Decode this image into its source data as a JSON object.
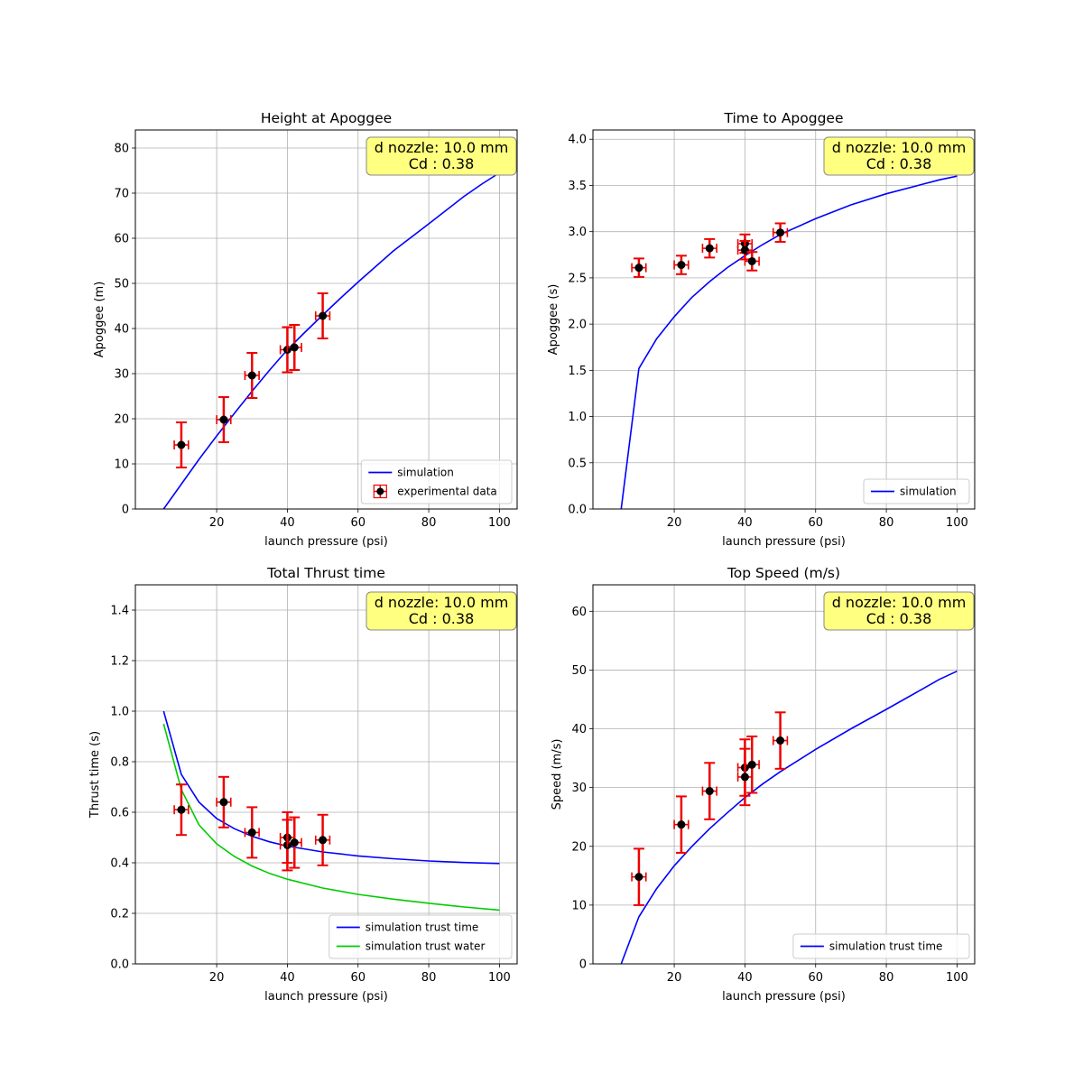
{
  "figure": {
    "annotation": {
      "line1": "d nozzle: 10.0 mm",
      "line2": "Cd :   0.38",
      "box_color": "#ffff80"
    },
    "colors": {
      "simulation": "#0000ff",
      "water": "#00cc00",
      "error_bar": "#ee0000",
      "marker": "#000000",
      "grid": "#b0b0b0"
    }
  },
  "chart_data": [
    {
      "type": "line",
      "title": "Height at Apoggee",
      "xlabel": "launch pressure (psi)",
      "ylabel": "Apoggee (m)",
      "xlim": [
        -3,
        105
      ],
      "ylim": [
        0,
        84
      ],
      "xticks": [
        20,
        40,
        60,
        80,
        100
      ],
      "yticks": [
        0,
        10,
        20,
        30,
        40,
        50,
        60,
        70,
        80
      ],
      "ytick_labels": [
        "0",
        "10",
        "20",
        "30",
        "40",
        "50",
        "60",
        "70",
        "80"
      ],
      "legend_position": "lower-right",
      "series": [
        {
          "name": "simulation",
          "color": "#0000ff",
          "x": [
            5,
            10,
            15,
            20,
            25,
            30,
            35,
            40,
            45,
            50,
            55,
            60,
            70,
            80,
            90,
            95,
            100
          ],
          "y": [
            0,
            5.5,
            11,
            16.2,
            21.2,
            26.1,
            30.8,
            35.3,
            39.2,
            43,
            46.7,
            50.3,
            57.2,
            63.2,
            69.3,
            72,
            74.5
          ]
        }
      ],
      "experimental": {
        "name": "experimental data",
        "x": [
          10,
          22,
          30,
          40,
          42,
          50
        ],
        "y": [
          14.2,
          19.8,
          29.6,
          35.3,
          35.8,
          42.8
        ],
        "xerr": 2,
        "yerr": 5
      }
    },
    {
      "type": "line",
      "title": "Time to Apoggee",
      "xlabel": "launch pressure (psi)",
      "ylabel": "Apoggee (s)",
      "xlim": [
        -3,
        105
      ],
      "ylim": [
        0,
        4.1
      ],
      "xticks": [
        20,
        40,
        60,
        80,
        100
      ],
      "yticks": [
        0,
        0.5,
        1,
        1.5,
        2,
        2.5,
        3,
        3.5,
        4
      ],
      "ytick_labels": [
        "0.0",
        "0.5",
        "1.0",
        "1.5",
        "2.0",
        "2.5",
        "3.0",
        "3.5",
        "4.0"
      ],
      "legend_position": "lower-right",
      "series": [
        {
          "name": "simulation",
          "color": "#0000ff",
          "x": [
            5,
            10,
            15,
            20,
            25,
            30,
            35,
            40,
            45,
            50,
            60,
            70,
            80,
            90,
            95,
            100
          ],
          "y": [
            0,
            1.52,
            1.84,
            2.08,
            2.29,
            2.46,
            2.61,
            2.74,
            2.86,
            2.97,
            3.14,
            3.29,
            3.41,
            3.51,
            3.56,
            3.6
          ]
        }
      ],
      "experimental": {
        "name": "",
        "x": [
          10,
          22,
          30,
          40,
          40,
          42,
          50
        ],
        "y": [
          2.61,
          2.64,
          2.82,
          2.87,
          2.8,
          2.68,
          2.99
        ],
        "xerr": 2,
        "yerr": 0.1
      }
    },
    {
      "type": "line",
      "title": "Total Thrust time",
      "xlabel": "launch pressure (psi)",
      "ylabel": "Thrust time (s)",
      "xlim": [
        -3,
        105
      ],
      "ylim": [
        0,
        1.5
      ],
      "xticks": [
        20,
        40,
        60,
        80,
        100
      ],
      "yticks": [
        0,
        0.2,
        0.4,
        0.6,
        0.8,
        1,
        1.2,
        1.4
      ],
      "ytick_labels": [
        "0.0",
        "0.2",
        "0.4",
        "0.6",
        "0.8",
        "1.0",
        "1.2",
        "1.4"
      ],
      "legend_position": "lower-right",
      "series": [
        {
          "name": "simulation trust time",
          "color": "#0000ff",
          "x": [
            5,
            10,
            15,
            20,
            25,
            30,
            35,
            40,
            50,
            60,
            70,
            80,
            90,
            100
          ],
          "y": [
            1.0,
            0.75,
            0.64,
            0.575,
            0.535,
            0.505,
            0.483,
            0.466,
            0.443,
            0.427,
            0.416,
            0.407,
            0.401,
            0.397
          ]
        },
        {
          "name": "simulation trust water",
          "color": "#00cc00",
          "x": [
            5,
            10,
            15,
            20,
            25,
            30,
            35,
            40,
            50,
            60,
            70,
            80,
            90,
            100
          ],
          "y": [
            0.95,
            0.69,
            0.55,
            0.475,
            0.425,
            0.387,
            0.358,
            0.335,
            0.3,
            0.275,
            0.256,
            0.24,
            0.225,
            0.213
          ]
        }
      ],
      "experimental": {
        "name": "",
        "x": [
          10,
          22,
          30,
          40,
          40,
          42,
          50
        ],
        "y": [
          0.61,
          0.64,
          0.52,
          0.5,
          0.47,
          0.48,
          0.49
        ],
        "xerr": 2,
        "yerr": 0.1
      }
    },
    {
      "type": "line",
      "title": "Top Speed (m/s)",
      "xlabel": "launch pressure (psi)",
      "ylabel": "Speed (m/s)",
      "xlim": [
        -3,
        105
      ],
      "ylim": [
        0,
        64.5
      ],
      "xticks": [
        20,
        40,
        60,
        80,
        100
      ],
      "yticks": [
        0,
        10,
        20,
        30,
        40,
        50,
        60
      ],
      "ytick_labels": [
        "0",
        "10",
        "20",
        "30",
        "40",
        "50",
        "60"
      ],
      "legend_position": "lower-right",
      "series": [
        {
          "name": "simulation trust time",
          "color": "#0000ff",
          "x": [
            5,
            10,
            15,
            20,
            25,
            30,
            35,
            40,
            45,
            50,
            60,
            70,
            80,
            90,
            95,
            100
          ],
          "y": [
            0,
            8,
            12.8,
            16.7,
            20,
            23,
            25.7,
            28.3,
            30.6,
            32.7,
            36.5,
            40,
            43.3,
            46.7,
            48.4,
            49.8
          ]
        }
      ],
      "experimental": {
        "name": "",
        "x": [
          10,
          22,
          30,
          40,
          40,
          42,
          50
        ],
        "y": [
          14.8,
          23.7,
          29.4,
          33.4,
          31.8,
          33.9,
          38
        ],
        "xerr": 2,
        "yerr": 4.8
      }
    }
  ]
}
